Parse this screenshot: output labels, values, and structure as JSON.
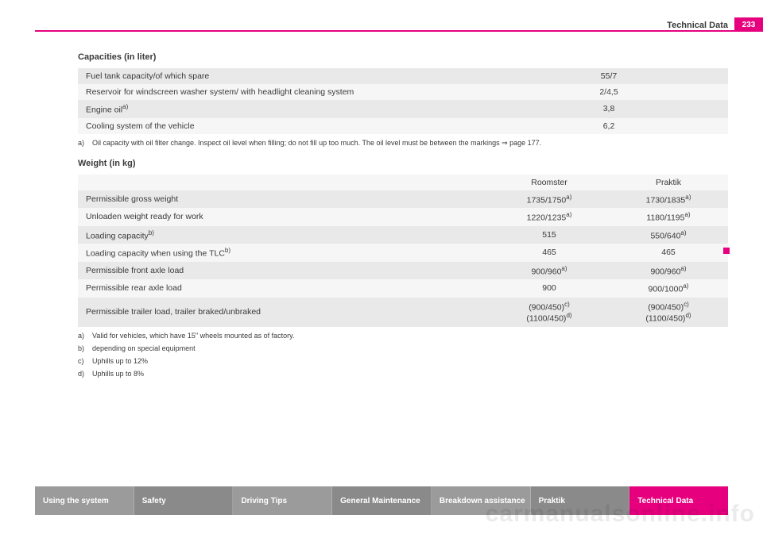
{
  "page": {
    "section_title": "Technical Data",
    "page_number": "233"
  },
  "capacities": {
    "heading": "Capacities (in liter)",
    "rows": [
      {
        "label": "Fuel tank capacity/of which spare",
        "sup": "",
        "value": "55/7"
      },
      {
        "label": "Reservoir for windscreen washer system/ with headlight cleaning system",
        "sup": "",
        "value": "2/4,5"
      },
      {
        "label": "Engine oil",
        "sup": "a)",
        "value": "3,8"
      },
      {
        "label": "Cooling system of the vehicle",
        "sup": "",
        "value": "6,2"
      }
    ],
    "footnotes": [
      {
        "key": "a)",
        "text": "Oil capacity with oil filter change. Inspect oil level when filling; do not fill up too much. The oil level must be between the markings ⇒ page 177."
      }
    ]
  },
  "weight": {
    "heading": "Weight (in kg)",
    "col1": "Roomster",
    "col2": "Praktik",
    "rows": [
      {
        "label": "Permissible gross weight",
        "sup": "",
        "v1": "1735/1750",
        "v1sup": "a)",
        "v2": "1730/1835",
        "v2sup": "a)",
        "shade": "odd"
      },
      {
        "label": "Unloaden weight ready for work",
        "sup": "",
        "v1": "1220/1235",
        "v1sup": "a)",
        "v2": "1180/1195",
        "v2sup": "a)",
        "shade": "even"
      },
      {
        "label": "Loading capacity",
        "sup": "b)",
        "v1": "515",
        "v1sup": "",
        "v2": "550/640",
        "v2sup": "a)",
        "shade": "odd"
      },
      {
        "label": "Loading capacity when using the TLC",
        "sup": "b)",
        "v1": "465",
        "v1sup": "",
        "v2": "465",
        "v2sup": "",
        "shade": "even"
      },
      {
        "label": "Permissible front axle load",
        "sup": "",
        "v1": "900/960",
        "v1sup": "a)",
        "v2": "900/960",
        "v2sup": "a)",
        "shade": "odd"
      },
      {
        "label": "Permissible rear axle load",
        "sup": "",
        "v1": "900",
        "v1sup": "",
        "v2": "900/1000",
        "v2sup": "a)",
        "shade": "even"
      }
    ],
    "trailer_row": {
      "label": "Permissible trailer load, trailer braked/unbraked",
      "v1a": "(900/450)",
      "v1a_sup": "c)",
      "v1b": "(1100/450)",
      "v1b_sup": "d)",
      "v2a": "(900/450)",
      "v2a_sup": "c)",
      "v2b": "(1100/450)",
      "v2b_sup": "d)"
    },
    "footnotes": [
      {
        "key": "a)",
        "text": "Valid for vehicles, which have 15\" wheels mounted as of factory."
      },
      {
        "key": "b)",
        "text": "depending on special equipment"
      },
      {
        "key": "c)",
        "text": "Uphills up to 12%"
      },
      {
        "key": "d)",
        "text": "Uphills up to 8%"
      }
    ]
  },
  "nav": {
    "items": [
      {
        "label": "Using the system",
        "bg": "#9b9b9b"
      },
      {
        "label": "Safety",
        "bg": "#8a8a8a"
      },
      {
        "label": "Driving Tips",
        "bg": "#9b9b9b"
      },
      {
        "label": "General Maintenance",
        "bg": "#8a8a8a"
      },
      {
        "label": "Breakdown assistance",
        "bg": "#9b9b9b"
      },
      {
        "label": "Praktik",
        "bg": "#8a8a8a"
      },
      {
        "label": "Technical Data",
        "bg": "#e6007e"
      }
    ]
  },
  "watermark": "carmanualsonline.info",
  "colors": {
    "accent": "#e6007e",
    "row_odd": "#e9e9e9",
    "row_even": "#f6f6f6"
  }
}
